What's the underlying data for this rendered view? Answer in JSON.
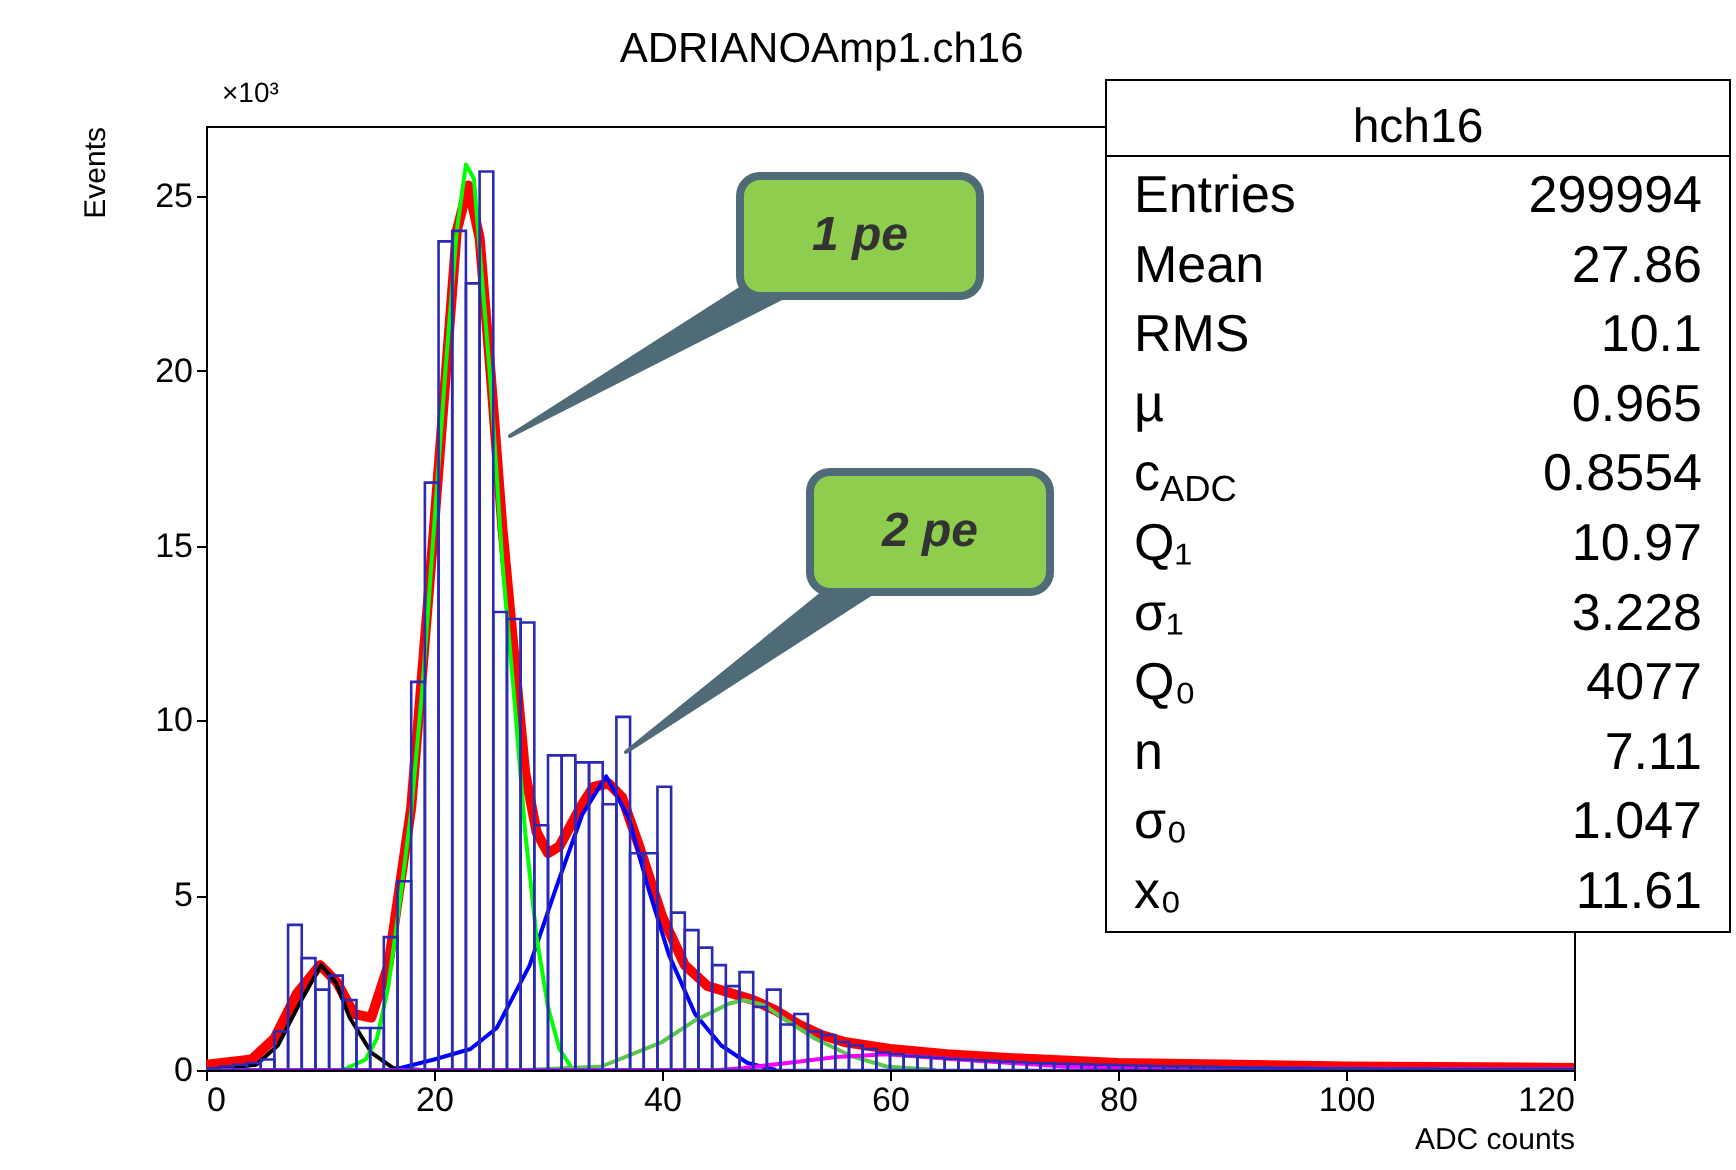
{
  "chart_data": {
    "type": "histogram",
    "title": "ADRIANOAmp1.ch16",
    "xlabel": "ADC counts",
    "ylabel": "Events",
    "color": "#2a2ab4",
    "bins": [
      0,
      1.2,
      2.4,
      3.6,
      4.8,
      6,
      7.2,
      8.4,
      9.6,
      10.8,
      12,
      13.2,
      14.4,
      15.6,
      16.8,
      18,
      19.2,
      20.4,
      21.6,
      22.8,
      24,
      25.2,
      26.4,
      27.6,
      28.8,
      30,
      31.2,
      32.4,
      33.6,
      34.8,
      36,
      37.2,
      38.4,
      39.6,
      40.8,
      42,
      43.2,
      44.4,
      45.6,
      46.8,
      48,
      49.2,
      50.4,
      51.6,
      52.8,
      54,
      55.2,
      56.4,
      57.6,
      58.8,
      60,
      61.2,
      62.4,
      63.6,
      64.8,
      66,
      67.2,
      68.4,
      69.6,
      70.8,
      72,
      73.2,
      74.4,
      75.6,
      76.8,
      78,
      79.2,
      80.4,
      81.6,
      82.8,
      84,
      85.2,
      86.4,
      87.6,
      88.8,
      90,
      91.2,
      92.4,
      93.6,
      94.8,
      96,
      97.2,
      98.4,
      99.6,
      100.8,
      102,
      103.2,
      104.4,
      105.6,
      106.8,
      108,
      109.2,
      110.4,
      111.6,
      112.8,
      114,
      115.2,
      116.4,
      117.6,
      118.8,
      120
    ],
    "values": [
      0.05,
      0.1,
      0.15,
      0.2,
      0.3,
      1.1,
      4.15,
      3.2,
      2.3,
      2.7,
      2.0,
      1.2,
      1.2,
      3.8,
      5.4,
      11.1,
      16.8,
      23.7,
      24.0,
      22.5,
      25.7,
      13.1,
      12.9,
      12.8,
      7.0,
      9.0,
      9.0,
      8.8,
      8.8,
      7.6,
      10.1,
      6.2,
      6.2,
      8.1,
      4.5,
      4.0,
      3.5,
      3.0,
      2.4,
      2.8,
      1.8,
      2.3,
      1.3,
      1.6,
      1.1,
      1.0,
      0.8,
      0.7,
      0.6,
      0.5,
      0.45,
      0.4,
      0.38,
      0.35,
      0.32,
      0.3,
      0.28,
      0.26,
      0.24,
      0.22,
      0.2,
      0.19,
      0.18,
      0.17,
      0.16,
      0.15,
      0.14,
      0.13,
      0.12,
      0.11,
      0.1,
      0.1,
      0.09,
      0.09,
      0.08,
      0.08,
      0.07,
      0.07,
      0.06,
      0.06,
      0.06,
      0.05,
      0.05,
      0.05,
      0.05,
      0.04,
      0.04,
      0.04,
      0.04,
      0.04,
      0.03,
      0.03,
      0.03,
      0.03,
      0.03,
      0.03,
      0.03,
      0.03,
      0.03,
      0.03
    ],
    "series": [
      {
        "type": "line",
        "color": "#ff0000",
        "x": [
          0,
          4,
          6,
          8,
          10,
          11.5,
          13,
          14.5,
          16,
          18,
          20,
          22,
          23,
          24,
          25,
          26,
          27,
          28,
          29,
          30,
          31,
          32,
          33,
          34,
          35.3,
          36.5,
          38,
          40,
          42,
          44,
          46,
          48,
          50,
          52,
          54,
          56,
          60,
          65,
          70,
          80,
          100,
          120
        ],
        "values": [
          0.15,
          0.3,
          0.9,
          2.2,
          3.0,
          2.5,
          1.6,
          1.5,
          3.0,
          7.5,
          15.5,
          24.0,
          25.3,
          23.8,
          19.8,
          15.5,
          12.0,
          8.5,
          6.8,
          6.2,
          6.4,
          7.0,
          7.6,
          8.1,
          8.2,
          7.8,
          6.4,
          4.4,
          3.0,
          2.4,
          2.2,
          2.0,
          1.7,
          1.3,
          1.0,
          0.8,
          0.6,
          0.45,
          0.35,
          0.2,
          0.1,
          0.06
        ]
      },
      {
        "type": "line",
        "color": "#000000",
        "x": [
          0,
          4.4,
          6.3,
          8.2,
          10.1,
          11.4,
          12.6,
          14.5,
          16.4,
          18.9
        ],
        "values": [
          0,
          0.15,
          0.7,
          1.9,
          3.0,
          2.5,
          1.5,
          0.5,
          0.06,
          0
        ]
      },
      {
        "type": "line",
        "color": "#0000ff",
        "x": [
          17,
          20,
          23.2,
          25.5,
          28.4,
          30.7,
          33,
          35.1,
          37.1,
          38.8,
          40.6,
          42.9,
          45.2,
          47.5,
          50
        ],
        "values": [
          0.05,
          0.3,
          0.6,
          1.2,
          3.0,
          5.2,
          7.3,
          8.4,
          7.2,
          5.2,
          3.3,
          1.6,
          0.7,
          0.2,
          0
        ]
      },
      {
        "type": "line",
        "color": "#00ff00",
        "x": [
          12,
          14,
          15,
          16,
          17,
          18,
          19,
          20,
          21,
          22,
          22.8,
          23.5,
          24,
          25,
          26,
          27,
          28,
          29,
          30,
          31,
          32
        ],
        "values": [
          0,
          0.3,
          0.9,
          2.4,
          4.8,
          7.4,
          11.0,
          15.5,
          20.0,
          24.0,
          25.9,
          25.5,
          23.5,
          19.5,
          14.5,
          10.8,
          6.8,
          3.8,
          1.8,
          0.6,
          0.1
        ]
      },
      {
        "type": "line",
        "color": "#5cc84a",
        "x": [
          28,
          34.7,
          40,
          42.8,
          45.9,
          47.2,
          49,
          51,
          53.4,
          56.6,
          59.7,
          64
        ],
        "values": [
          0,
          0.1,
          0.8,
          1.4,
          1.9,
          2.0,
          1.85,
          1.4,
          0.9,
          0.4,
          0.1,
          0
        ]
      },
      {
        "type": "line",
        "color": "#ff00ff",
        "x": [
          0,
          45,
          47.2,
          51,
          55.3,
          59.7,
          66,
          75.3,
          84.7,
          120
        ],
        "values": [
          0,
          0,
          0.06,
          0.2,
          0.37,
          0.45,
          0.3,
          0.1,
          0.05,
          0.02
        ]
      }
    ],
    "xlim": [
      0,
      120
    ],
    "xticks": [
      0,
      20,
      40,
      60,
      80,
      100,
      120
    ],
    "ylim": [
      0,
      27
    ],
    "yticks": [
      0,
      5,
      10,
      15,
      20,
      25
    ],
    "grid": false,
    "annotations": [
      "×10³",
      "hch16",
      "Entries 299994",
      "Mean 27.86",
      "RMS 10.1",
      "µ 0.965",
      "c$_{ADC}$ 0.8554",
      "Q₁ 10.97",
      "σ₁ 3.228",
      "Q₀ 4077",
      "n 7.11",
      "σ₀ 1.047",
      "x₀ 11.61",
      "1 pe",
      "2 pe"
    ]
  }
}
